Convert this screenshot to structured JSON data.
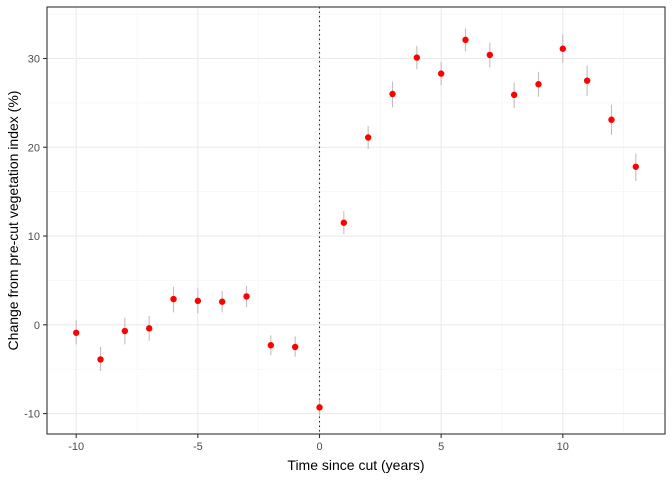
{
  "chart_data": {
    "type": "scatter",
    "xlabel": "Time since cut (years)",
    "ylabel": "Change from pre-cut vegetation index (%)",
    "xlim": [
      -11.2,
      14.2
    ],
    "ylim": [
      -12.3,
      35.8
    ],
    "x_ticks": [
      -10,
      -5,
      0,
      5,
      10
    ],
    "y_ticks": [
      -10,
      0,
      10,
      20,
      30
    ],
    "x_tick_labels": [
      "-10",
      "-5",
      "0",
      "5",
      "10"
    ],
    "y_tick_labels": [
      "-10",
      "0",
      "10",
      "20",
      "30"
    ],
    "grid": true,
    "reference_line": {
      "x": 0,
      "style": "dotted"
    },
    "series": [
      {
        "x": [
          -10,
          -9,
          -8,
          -7,
          -6,
          -5,
          -4,
          -3,
          -2,
          -1,
          0,
          1,
          2,
          3,
          4,
          5,
          6,
          7,
          8,
          9,
          10,
          11,
          12,
          13
        ],
        "y": [
          -0.9,
          -3.9,
          -0.7,
          -0.4,
          2.9,
          2.7,
          2.6,
          3.2,
          -2.3,
          -2.5,
          -9.3,
          11.5,
          21.1,
          26.0,
          30.1,
          28.3,
          32.1,
          30.4,
          25.9,
          27.1,
          31.1,
          27.5,
          23.1,
          17.8
        ],
        "y_low": [
          -2.2,
          -5.2,
          -2.2,
          -1.8,
          1.4,
          1.3,
          1.4,
          2.0,
          -3.4,
          -3.6,
          -10.2,
          10.2,
          19.8,
          24.5,
          28.8,
          27.0,
          30.8,
          29.0,
          24.4,
          25.7,
          29.5,
          25.8,
          21.4,
          16.2
        ],
        "y_high": [
          0.5,
          -2.5,
          0.8,
          1.0,
          4.3,
          4.1,
          3.8,
          4.4,
          -1.2,
          -1.3,
          -8.4,
          12.8,
          22.4,
          27.4,
          31.4,
          29.6,
          33.4,
          31.8,
          27.3,
          28.5,
          32.7,
          29.2,
          24.8,
          19.3
        ]
      }
    ],
    "colors": {
      "point": "#ff0000",
      "errorbar": "#bfbfbf",
      "grid_major": "#ebebeb",
      "grid_minor": "#f5f5f5",
      "panel_border": "#333333",
      "reference_line": "#333333"
    }
  }
}
